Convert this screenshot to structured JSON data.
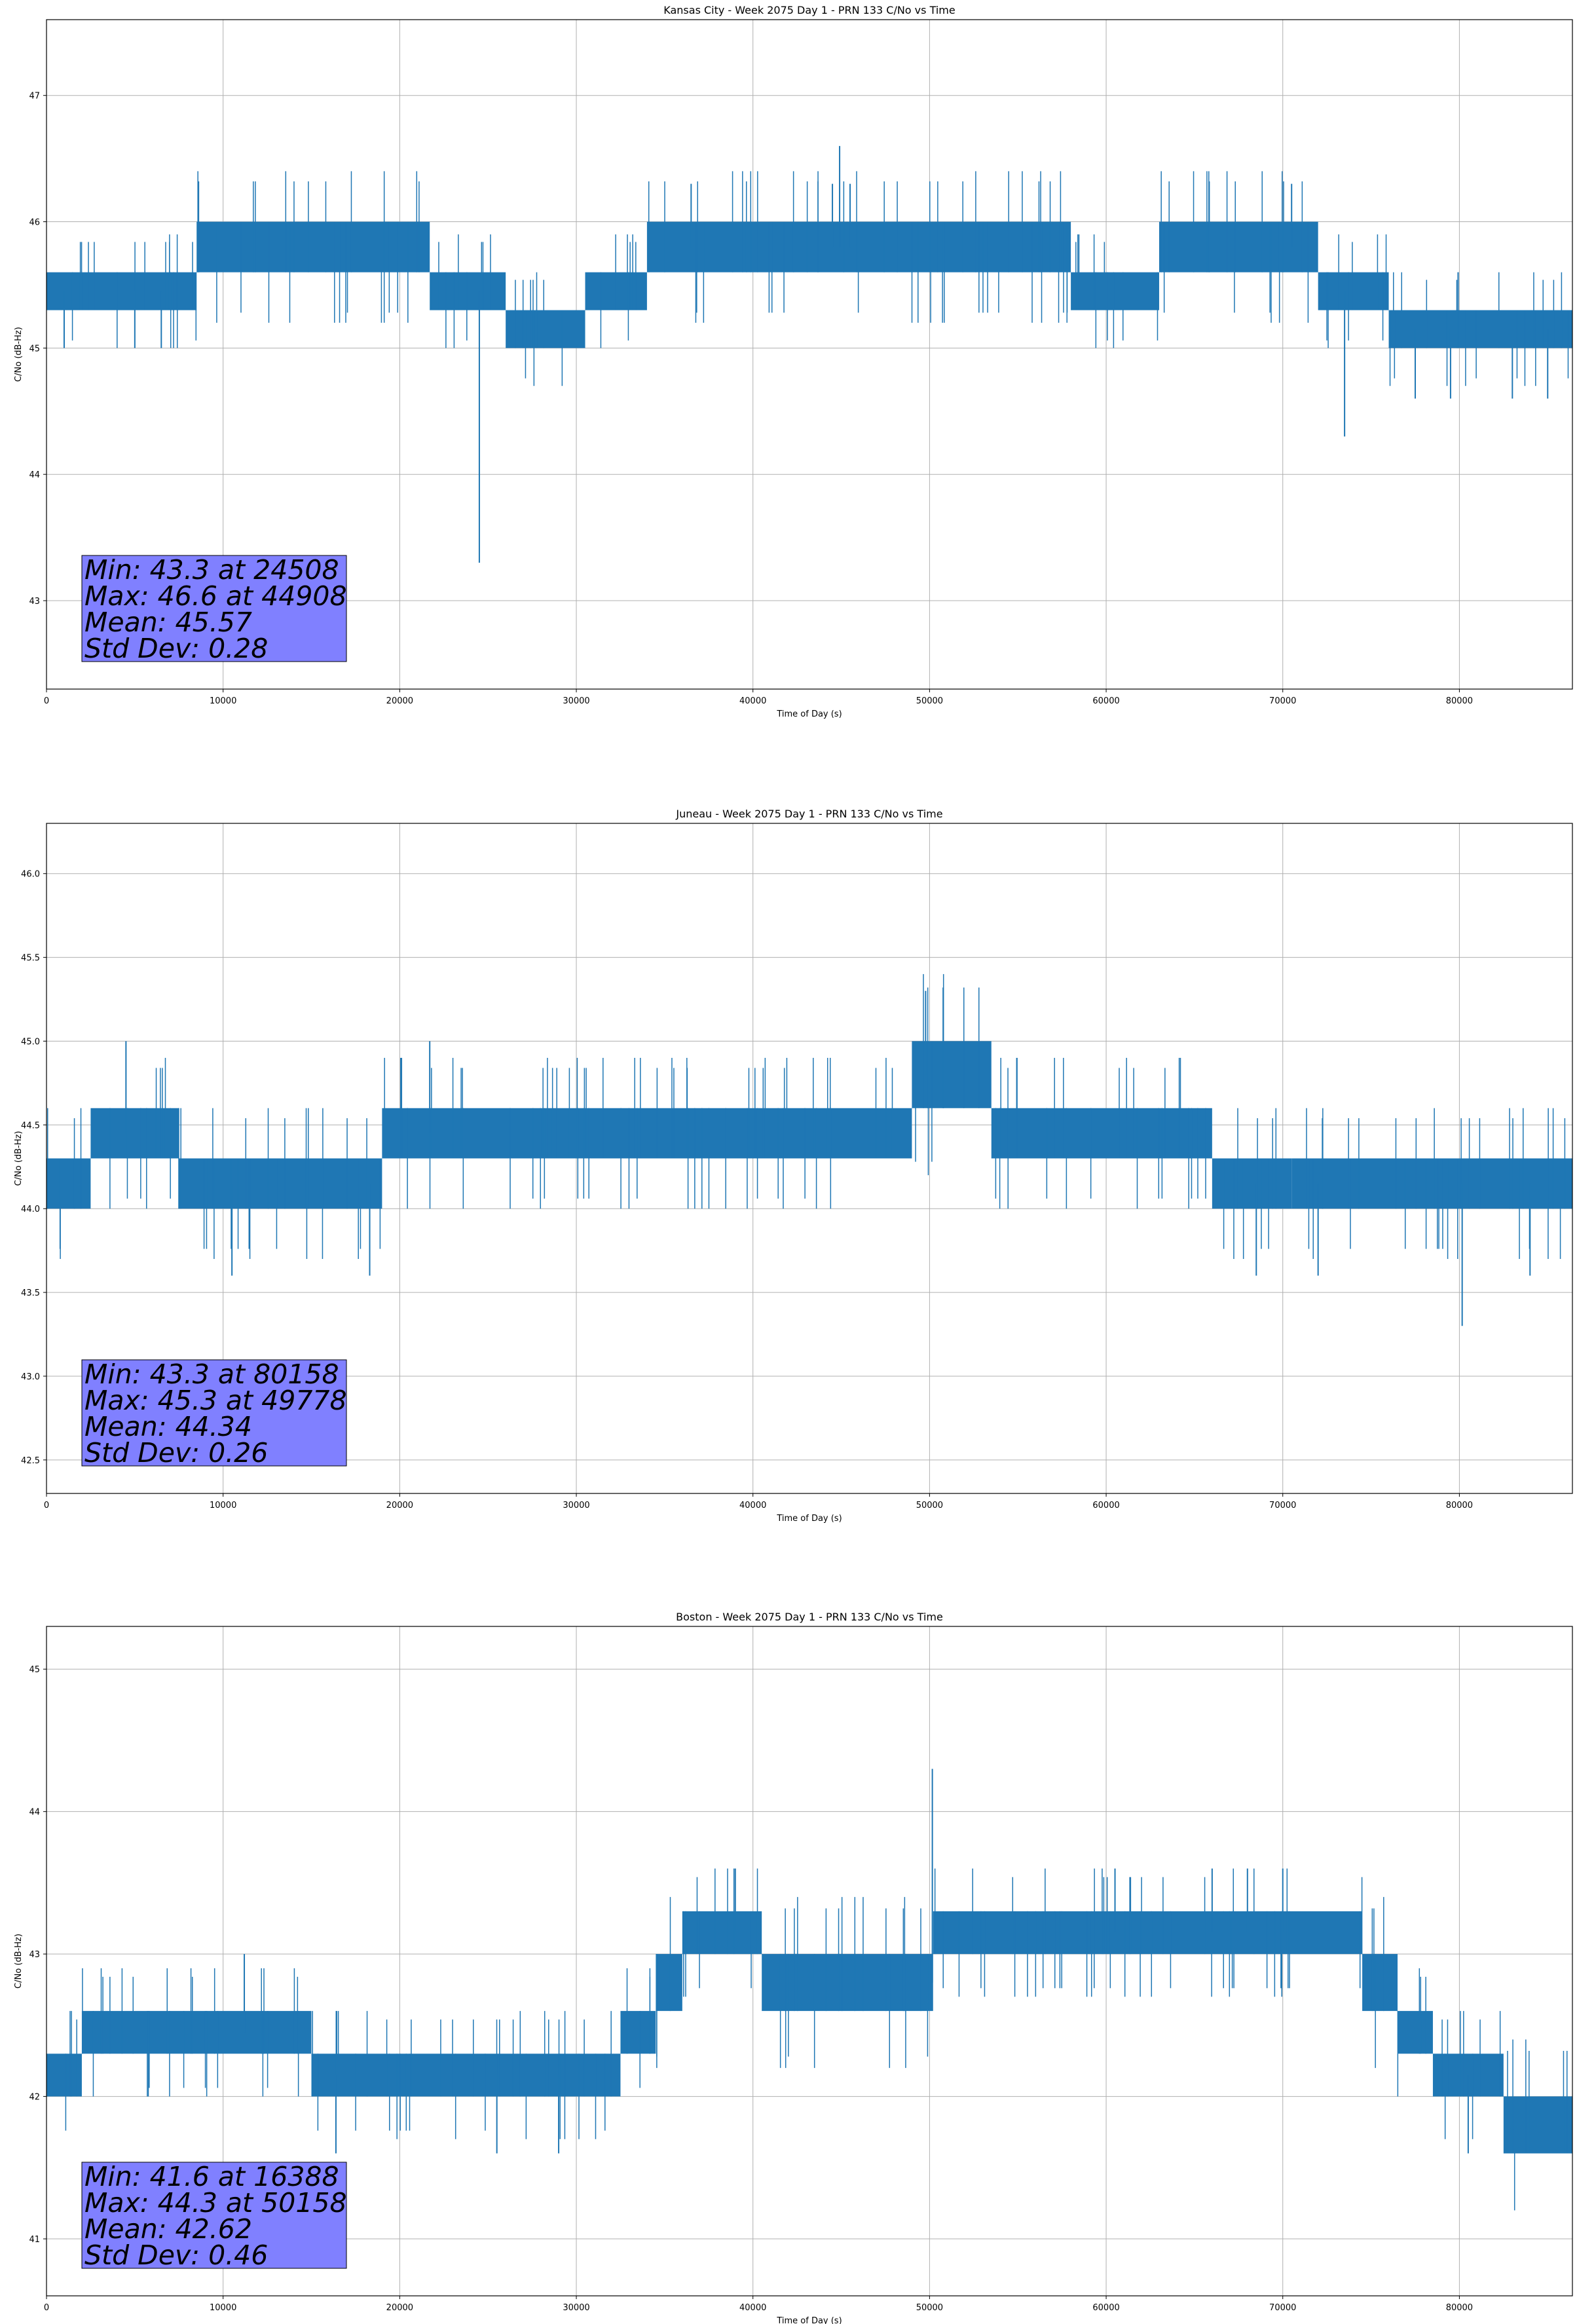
{
  "chart_data": [
    {
      "type": "line",
      "title": "Kansas City - Week 2075 Day 1 - PRN 133 C/No vs Time",
      "xlabel": "Time of Day (s)",
      "ylabel": "C/No (dB-Hz)",
      "xlim": [
        0,
        86400
      ],
      "ylim": [
        42.3,
        47.6
      ],
      "xticks": [
        0,
        10000,
        20000,
        30000,
        40000,
        50000,
        60000,
        70000,
        80000
      ],
      "yticks": [
        43,
        44,
        45,
        46,
        47
      ],
      "ytick_decimals": 0,
      "grid": true,
      "series_color": "#1f77b4",
      "stats": [
        "Min: 43.3 at 24508",
        "Max: 46.6 at 44908",
        "Mean: 45.57",
        "Std Dev: 0.28"
      ],
      "segments": [
        {
          "x0": 0,
          "x1": 8500,
          "lo": 45.3,
          "hi": 45.6
        },
        {
          "x0": 8500,
          "x1": 21700,
          "lo": 45.6,
          "hi": 46.0
        },
        {
          "x0": 21700,
          "x1": 26000,
          "lo": 45.3,
          "hi": 45.6
        },
        {
          "x0": 26000,
          "x1": 30500,
          "lo": 45.0,
          "hi": 45.3
        },
        {
          "x0": 30500,
          "x1": 34000,
          "lo": 45.3,
          "hi": 45.6
        },
        {
          "x0": 34000,
          "x1": 58000,
          "lo": 45.6,
          "hi": 46.0
        },
        {
          "x0": 58000,
          "x1": 63000,
          "lo": 45.3,
          "hi": 45.6
        },
        {
          "x0": 63000,
          "x1": 72000,
          "lo": 45.6,
          "hi": 46.0
        },
        {
          "x0": 72000,
          "x1": 76000,
          "lo": 45.3,
          "hi": 45.6
        },
        {
          "x0": 76000,
          "x1": 86400,
          "lo": 45.0,
          "hi": 45.3
        }
      ],
      "spikes": [
        {
          "x": 24508,
          "y": 43.3
        },
        {
          "x": 73500,
          "y": 44.3
        },
        {
          "x": 44908,
          "y": 46.6
        },
        {
          "x": 44500,
          "y": 46.3
        },
        {
          "x": 45500,
          "y": 46.3
        },
        {
          "x": 36500,
          "y": 46.3
        },
        {
          "x": 70500,
          "y": 46.3
        },
        {
          "x": 77500,
          "y": 44.6
        },
        {
          "x": 79500,
          "y": 44.6
        },
        {
          "x": 83000,
          "y": 44.6
        },
        {
          "x": 85000,
          "y": 44.6
        },
        {
          "x": 1000,
          "y": 45.0
        },
        {
          "x": 5000,
          "y": 45.0
        },
        {
          "x": 6500,
          "y": 45.0
        }
      ]
    },
    {
      "type": "line",
      "title": "Juneau - Week 2075 Day 1 - PRN 133 C/No vs Time",
      "xlabel": "Time of Day (s)",
      "ylabel": "C/No (dB-Hz)",
      "xlim": [
        0,
        86400
      ],
      "ylim": [
        42.3,
        46.3
      ],
      "xticks": [
        0,
        10000,
        20000,
        30000,
        40000,
        50000,
        60000,
        70000,
        80000
      ],
      "yticks": [
        42.5,
        43.0,
        43.5,
        44.0,
        44.5,
        45.0,
        45.5,
        46.0
      ],
      "ytick_decimals": 1,
      "grid": true,
      "series_color": "#1f77b4",
      "stats": [
        "Min: 43.3 at 80158",
        "Max: 45.3 at 49778",
        "Mean: 44.34",
        "Std Dev: 0.26"
      ],
      "segments": [
        {
          "x0": 0,
          "x1": 2500,
          "lo": 44.0,
          "hi": 44.3
        },
        {
          "x0": 2500,
          "x1": 7500,
          "lo": 44.3,
          "hi": 44.6
        },
        {
          "x0": 7500,
          "x1": 19000,
          "lo": 44.0,
          "hi": 44.3
        },
        {
          "x0": 19000,
          "x1": 31500,
          "lo": 44.3,
          "hi": 44.6
        },
        {
          "x0": 31500,
          "x1": 49000,
          "lo": 44.3,
          "hi": 44.6
        },
        {
          "x0": 49000,
          "x1": 53500,
          "lo": 44.6,
          "hi": 45.0
        },
        {
          "x0": 53500,
          "x1": 66000,
          "lo": 44.3,
          "hi": 44.6
        },
        {
          "x0": 66000,
          "x1": 70500,
          "lo": 44.0,
          "hi": 44.3
        },
        {
          "x0": 70500,
          "x1": 86400,
          "lo": 44.0,
          "hi": 44.3
        }
      ],
      "spikes": [
        {
          "x": 49778,
          "y": 45.3
        },
        {
          "x": 80158,
          "y": 43.3
        },
        {
          "x": 4500,
          "y": 45.0
        },
        {
          "x": 21700,
          "y": 45.0
        },
        {
          "x": 10500,
          "y": 43.6
        },
        {
          "x": 18300,
          "y": 43.6
        },
        {
          "x": 68500,
          "y": 43.6
        },
        {
          "x": 72000,
          "y": 43.6
        },
        {
          "x": 84000,
          "y": 43.6
        }
      ]
    },
    {
      "type": "line",
      "title": "Boston - Week 2075 Day 1 - PRN 133 C/No vs Time",
      "xlabel": "Time of Day (s)",
      "ylabel": "C/No (dB-Hz)",
      "xlim": [
        0,
        86400
      ],
      "ylim": [
        40.6,
        45.3
      ],
      "xticks": [
        0,
        10000,
        20000,
        30000,
        40000,
        50000,
        60000,
        70000,
        80000
      ],
      "yticks": [
        41,
        42,
        43,
        44,
        45
      ],
      "ytick_decimals": 0,
      "grid": true,
      "series_color": "#1f77b4",
      "stats": [
        "Min: 41.6 at 16388",
        "Max: 44.3 at 50158",
        "Mean: 42.62",
        "Std Dev: 0.46"
      ],
      "segments": [
        {
          "x0": 0,
          "x1": 2000,
          "lo": 42.0,
          "hi": 42.3
        },
        {
          "x0": 2000,
          "x1": 15000,
          "lo": 42.3,
          "hi": 42.6
        },
        {
          "x0": 15000,
          "x1": 32500,
          "lo": 42.0,
          "hi": 42.3
        },
        {
          "x0": 32500,
          "x1": 34500,
          "lo": 42.3,
          "hi": 42.6
        },
        {
          "x0": 34500,
          "x1": 36000,
          "lo": 42.6,
          "hi": 43.0
        },
        {
          "x0": 36000,
          "x1": 40500,
          "lo": 43.0,
          "hi": 43.3
        },
        {
          "x0": 40500,
          "x1": 50200,
          "lo": 42.6,
          "hi": 43.0
        },
        {
          "x0": 50200,
          "x1": 74500,
          "lo": 43.0,
          "hi": 43.3
        },
        {
          "x0": 74500,
          "x1": 76500,
          "lo": 42.6,
          "hi": 43.0
        },
        {
          "x0": 76500,
          "x1": 78500,
          "lo": 42.3,
          "hi": 42.6
        },
        {
          "x0": 78500,
          "x1": 82500,
          "lo": 42.0,
          "hi": 42.3
        },
        {
          "x0": 82500,
          "x1": 86400,
          "lo": 41.6,
          "hi": 42.0
        }
      ],
      "spikes": [
        {
          "x": 50158,
          "y": 44.3
        },
        {
          "x": 16388,
          "y": 41.6
        },
        {
          "x": 11200,
          "y": 43.0
        },
        {
          "x": 39000,
          "y": 43.6
        },
        {
          "x": 60500,
          "y": 43.6
        },
        {
          "x": 66000,
          "y": 43.6
        },
        {
          "x": 68000,
          "y": 43.6
        },
        {
          "x": 70000,
          "y": 43.6
        },
        {
          "x": 25500,
          "y": 41.6
        },
        {
          "x": 29000,
          "y": 41.6
        },
        {
          "x": 80500,
          "y": 41.6
        }
      ]
    }
  ]
}
